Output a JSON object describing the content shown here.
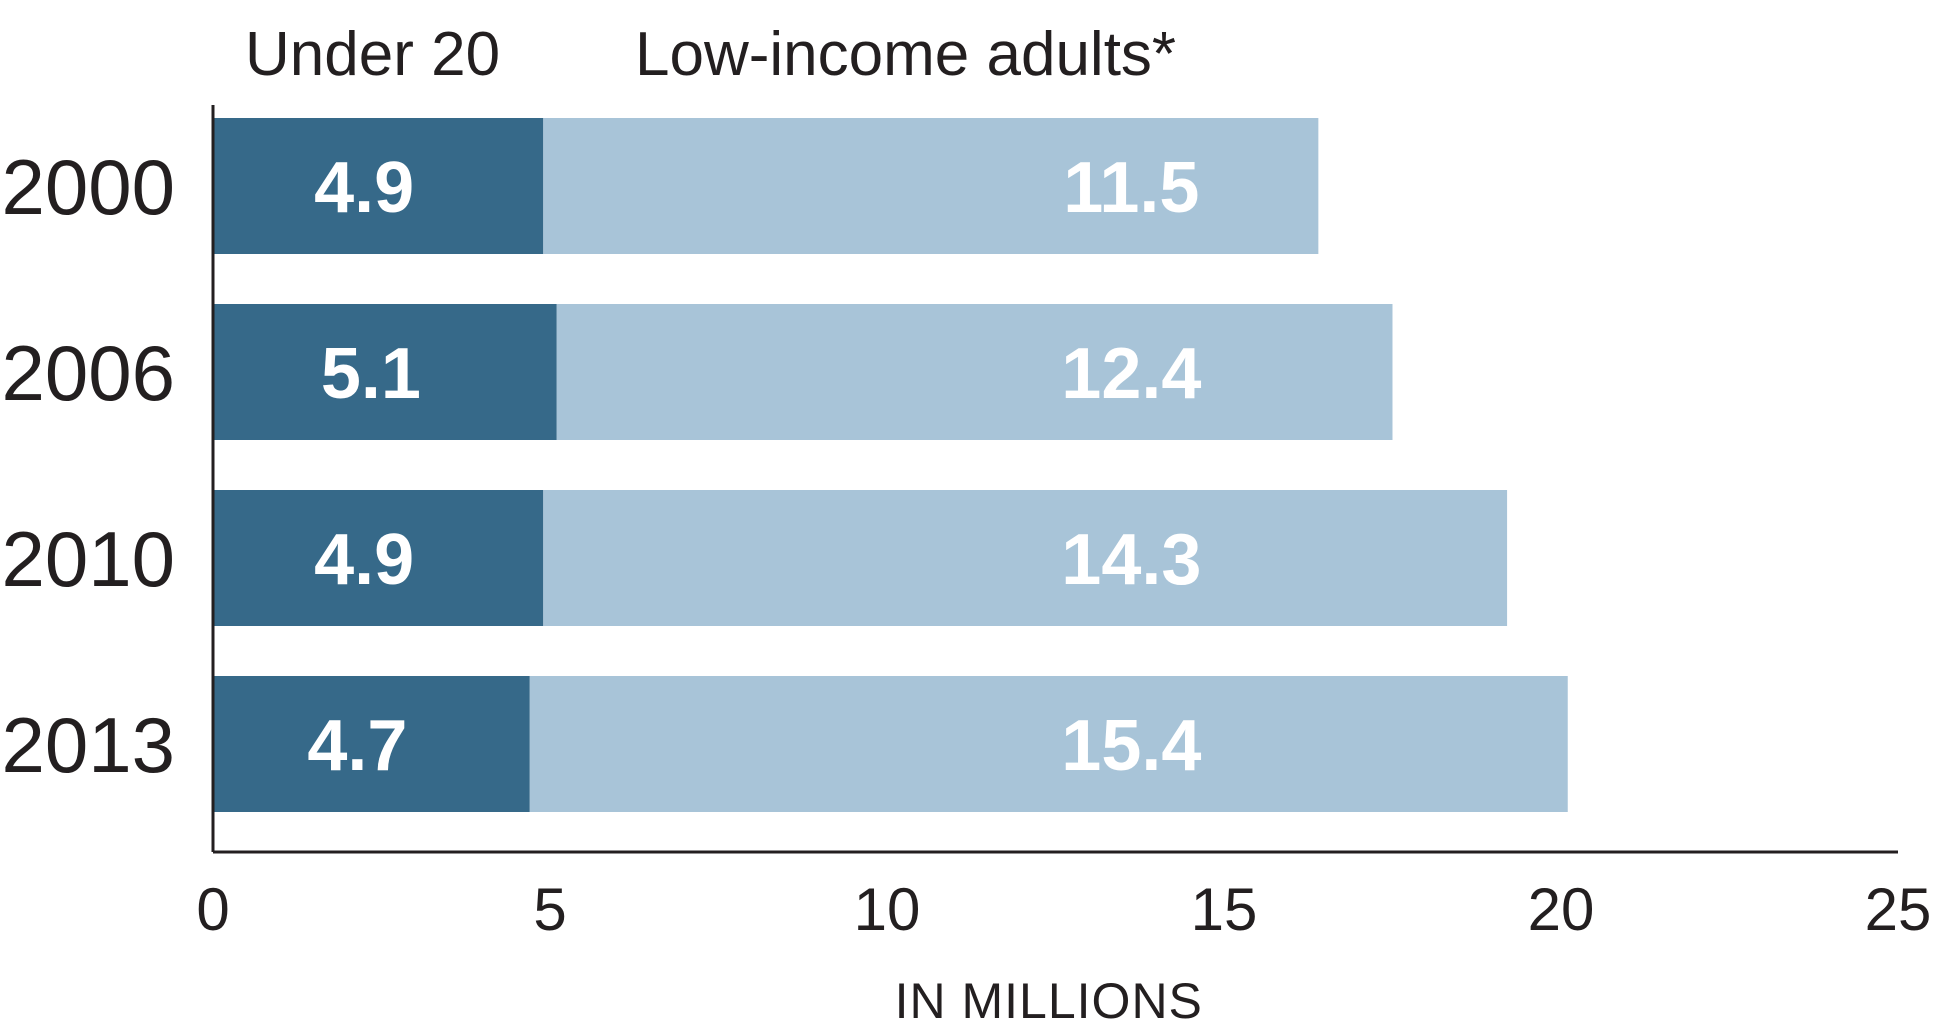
{
  "chart_data": {
    "type": "bar",
    "orientation": "horizontal",
    "stacked": true,
    "categories": [
      "2000",
      "2006",
      "2010",
      "2013"
    ],
    "series": [
      {
        "name": "Under 20",
        "values": [
          4.9,
          5.1,
          4.9,
          4.7
        ],
        "color": "#366989"
      },
      {
        "name": "Low-income adults*",
        "values": [
          11.5,
          12.4,
          14.3,
          15.4
        ],
        "color": "#a8c4d8"
      }
    ],
    "xlim": [
      0,
      25
    ],
    "xticks": [
      0,
      5,
      10,
      15,
      20,
      25
    ],
    "xlabel": "IN MILLIONS",
    "ylabel": "",
    "title": "",
    "grid": false,
    "legend_position": "top",
    "data_labels": true
  }
}
